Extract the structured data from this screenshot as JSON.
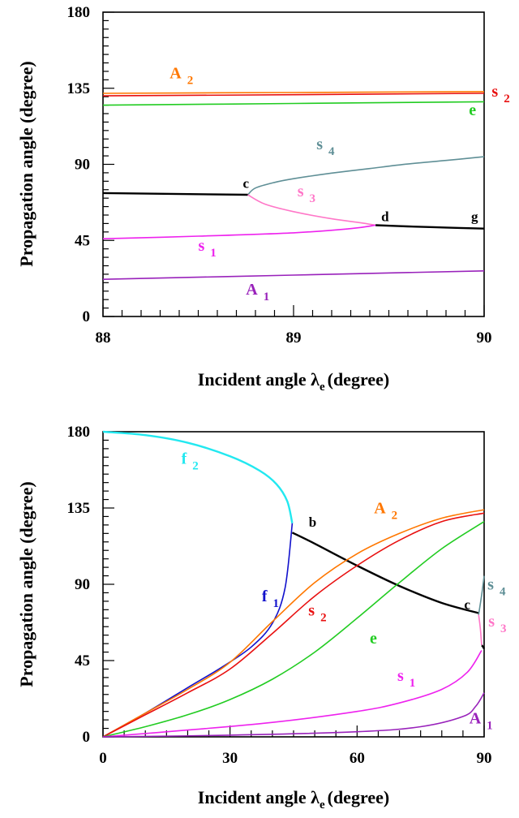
{
  "chart_data": [
    {
      "type": "line",
      "xlabel_main": "Incident angle λ",
      "xlabel_sub": "e",
      "xlabel_suffix": "(degree)",
      "ylabel": "Propagation angle (degree)",
      "xlim": [
        88,
        90
      ],
      "ylim": [
        0,
        180
      ],
      "x_ticks": [
        88,
        89,
        90
      ],
      "y_ticks": [
        0,
        45,
        90,
        135,
        180
      ],
      "x_minor_step": 0.1,
      "y_minor_step": 5,
      "series": [
        {
          "name": "A2",
          "color": "#FF7700",
          "x": [
            88,
            89,
            90
          ],
          "y": [
            132,
            132.5,
            133
          ]
        },
        {
          "name": "s2",
          "color": "#E81010",
          "x": [
            88,
            89,
            90
          ],
          "y": [
            130.5,
            131.2,
            132
          ]
        },
        {
          "name": "e",
          "color": "#22CC22",
          "x": [
            88,
            89,
            90
          ],
          "y": [
            125,
            126,
            127
          ]
        },
        {
          "name": "s4",
          "color": "#5F8F96",
          "x": [
            88.76,
            88.8,
            88.9,
            89.0,
            89.2,
            89.4,
            89.6,
            89.8,
            90.0
          ],
          "y": [
            72,
            76,
            79.3,
            81.5,
            84.8,
            87.5,
            90.2,
            92.3,
            94.5
          ]
        },
        {
          "name": "",
          "color": "#000000",
          "x": [
            88,
            88.76
          ],
          "y": [
            73,
            72
          ]
        },
        {
          "name": "s3",
          "color": "#FF77C8",
          "x": [
            88.76,
            88.85,
            89.0,
            89.2,
            89.35,
            89.43
          ],
          "y": [
            72,
            66.5,
            62,
            57.8,
            55.5,
            54
          ]
        },
        {
          "name": "",
          "color": "#000000",
          "x": [
            89.43,
            89.6,
            89.8,
            90.0
          ],
          "y": [
            54,
            53.3,
            52.6,
            52
          ]
        },
        {
          "name": "s1",
          "color": "#EE22EE",
          "x": [
            88,
            88.5,
            89.0,
            89.3,
            89.43
          ],
          "y": [
            46,
            47.5,
            49.5,
            52,
            54
          ]
        },
        {
          "name": "A1",
          "color": "#9922BB",
          "x": [
            88,
            89,
            90
          ],
          "y": [
            22,
            24.5,
            27
          ]
        }
      ],
      "labels": [
        {
          "text": "A",
          "sub": "2",
          "color": "#FF7700",
          "x": 88.35,
          "y": 141
        },
        {
          "text": "s",
          "sub": "2",
          "color": "#E81010",
          "x": 90.04,
          "y": 130
        },
        {
          "text": "e",
          "sub": "",
          "color": "#22CC22",
          "x": 89.92,
          "y": 119
        },
        {
          "text": "s",
          "sub": "4",
          "color": "#5F8F96",
          "x": 89.12,
          "y": 99
        },
        {
          "text": "s",
          "sub": "3",
          "color": "#FF77C8",
          "x": 89.02,
          "y": 71
        },
        {
          "text": "s",
          "sub": "1",
          "color": "#EE22EE",
          "x": 88.5,
          "y": 39
        },
        {
          "text": "A",
          "sub": "1",
          "color": "#9922BB",
          "x": 88.75,
          "y": 13
        }
      ],
      "points": [
        {
          "text": "c",
          "x": 88.75,
          "y": 76
        },
        {
          "text": "d",
          "x": 89.48,
          "y": 56.5
        },
        {
          "text": "g",
          "x": 89.95,
          "y": 56.5
        }
      ]
    },
    {
      "type": "line",
      "xlabel_main": "Incident angle λ",
      "xlabel_sub": "e",
      "xlabel_suffix": "(degree)",
      "ylabel": "Propagation angle (degree)",
      "xlim": [
        0,
        90
      ],
      "ylim": [
        0,
        180
      ],
      "x_ticks": [
        0,
        30,
        60,
        90
      ],
      "y_ticks": [
        0,
        45,
        90,
        135,
        180
      ],
      "x_minor_step": 5,
      "y_minor_step": 5,
      "series": [
        {
          "name": "f2",
          "color": "#22E8F0",
          "x": [
            0,
            10,
            20,
            30,
            37,
            41,
            43.5,
            44.7
          ],
          "y": [
            180,
            178,
            173.5,
            165.5,
            157,
            149,
            139,
            126
          ]
        },
        {
          "name": "f1",
          "color": "#1111CC",
          "x": [
            0,
            10,
            20,
            28,
            35,
            40,
            43,
            44.7
          ],
          "y": [
            0,
            14,
            29,
            41,
            53,
            67,
            88,
            126
          ]
        },
        {
          "name": "",
          "color": "#000000",
          "x": [
            44.7,
            50,
            60,
            70,
            80,
            88.7
          ],
          "y": [
            120.5,
            114,
            101,
            89,
            79,
            73
          ]
        },
        {
          "name": "A2",
          "color": "#FF7700",
          "x": [
            0,
            10,
            20,
            30,
            40,
            50,
            60,
            70,
            80,
            90
          ],
          "y": [
            0,
            14,
            28,
            44,
            68,
            91,
            108,
            120,
            129,
            134
          ]
        },
        {
          "name": "s2",
          "color": "#E81010",
          "x": [
            0,
            10,
            20,
            30,
            40,
            50,
            60,
            70,
            80,
            90
          ],
          "y": [
            0,
            13,
            26,
            40,
            61,
            83,
            101,
            116,
            127,
            132
          ]
        },
        {
          "name": "e",
          "color": "#22CC22",
          "x": [
            0,
            10,
            20,
            30,
            40,
            50,
            60,
            70,
            80,
            90
          ],
          "y": [
            0,
            6,
            13,
            22,
            34,
            50,
            70,
            91,
            111,
            127
          ]
        },
        {
          "name": "s1",
          "color": "#EE22EE",
          "x": [
            0,
            20,
            40,
            60,
            70,
            80,
            86,
            89.4
          ],
          "y": [
            0,
            4,
            8.5,
            15,
            20,
            28,
            38,
            51
          ]
        },
        {
          "name": "A1",
          "color": "#9922BB",
          "x": [
            0,
            30,
            60,
            75,
            85,
            88,
            90
          ],
          "y": [
            0,
            1,
            3,
            6,
            12,
            18,
            26
          ]
        },
        {
          "name": "s4",
          "color": "#5F8F96",
          "x": [
            88.7,
            89.2,
            89.6,
            90
          ],
          "y": [
            72,
            80,
            87,
            95
          ]
        },
        {
          "name": "s3",
          "color": "#FF77C8",
          "x": [
            88.7,
            89.1,
            89.3,
            89.43
          ],
          "y": [
            72,
            64,
            58,
            54
          ]
        },
        {
          "name": "",
          "color": "#000000",
          "x": [
            89.43,
            89.7,
            90
          ],
          "y": [
            54,
            53.3,
            52
          ]
        }
      ],
      "labels": [
        {
          "text": "f",
          "sub": "2",
          "color": "#22E8F0",
          "x": 18.5,
          "y": 161
        },
        {
          "text": "f",
          "sub": "1",
          "color": "#1111CC",
          "x": 37.5,
          "y": 80
        },
        {
          "text": "A",
          "sub": "2",
          "color": "#FF7700",
          "x": 64,
          "y": 132
        },
        {
          "text": "s",
          "sub": "2",
          "color": "#E81010",
          "x": 48.5,
          "y": 71.5
        },
        {
          "text": "e",
          "sub": "",
          "color": "#22CC22",
          "x": 63,
          "y": 55
        },
        {
          "text": "s",
          "sub": "4",
          "color": "#5F8F96",
          "x": 90.8,
          "y": 87
        },
        {
          "text": "s",
          "sub": "3",
          "color": "#FF77C8",
          "x": 91,
          "y": 65
        },
        {
          "text": "s",
          "sub": "1",
          "color": "#EE22EE",
          "x": 69.5,
          "y": 33
        },
        {
          "text": "A",
          "sub": "1",
          "color": "#9922BB",
          "x": 86.5,
          "y": 8
        }
      ],
      "points": [
        {
          "text": "b",
          "x": 49.5,
          "y": 124
        },
        {
          "text": "c",
          "x": 86,
          "y": 75.5
        }
      ]
    }
  ]
}
